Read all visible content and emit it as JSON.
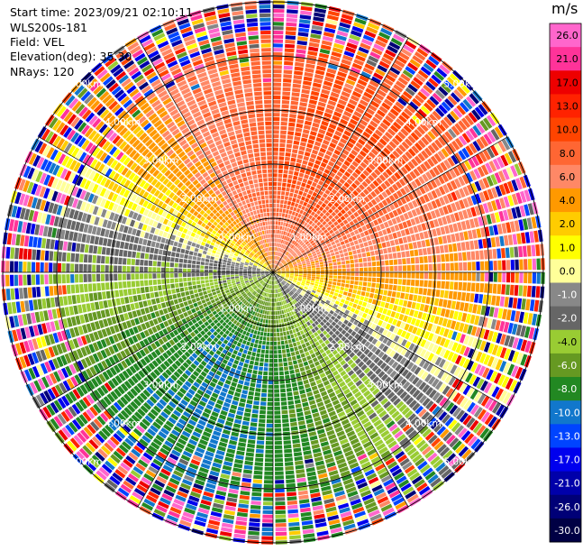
{
  "info": {
    "start_time": "Start time: 2023/09/21 02:10:11",
    "instrument": "WLS200s-181",
    "field": "Field: VEL",
    "elevation": "Elevation(deg): 35.30",
    "nrays": "NRays: 120"
  },
  "colorbar": {
    "unit": "m/s",
    "ticks": [
      "26.0",
      "21.0",
      "17.0",
      "13.0",
      "10.0",
      "8.0",
      "6.0",
      "4.0",
      "2.0",
      "1.0",
      "0.0",
      "-1.0",
      "-2.0",
      "-4.0",
      "-6.0",
      "-8.0",
      "-10.0",
      "-13.0",
      "-17.0",
      "-21.0",
      "-26.0",
      "-30.0"
    ],
    "colors": [
      "#ff66cc",
      "#ff3399",
      "#ee0000",
      "#ff2200",
      "#ff4400",
      "#ff6633",
      "#ff8866",
      "#ff9900",
      "#ffcc00",
      "#ffff00",
      "#ffff99",
      "#888888",
      "#666666",
      "#99cc33",
      "#669922",
      "#228822",
      "#1177cc",
      "#0044ff",
      "#0000ee",
      "#0000aa",
      "#000077",
      "#000044"
    ]
  },
  "chart_data": {
    "type": "heatmap",
    "projection": "polar PPI",
    "field": "VEL",
    "units": "m/s",
    "nrays": 120,
    "max_range_km": 5.0,
    "range_rings_km": [
      1.0,
      2.0,
      3.0,
      4.0,
      5.0
    ],
    "ring_labels": [
      "1.00km",
      "2.00km",
      "3.00km",
      "4.00km",
      "5.00km"
    ],
    "radial_spokes_deg": [
      0,
      30,
      60,
      90,
      120,
      150,
      180,
      210,
      240,
      270,
      300,
      330
    ],
    "wind_pattern": {
      "toward_direction": "south-southwest",
      "away_direction": "north-northeast",
      "peak_positive_ms": 8.0,
      "peak_negative_ms": -10.0,
      "noise_beyond_km": 3.5
    }
  }
}
